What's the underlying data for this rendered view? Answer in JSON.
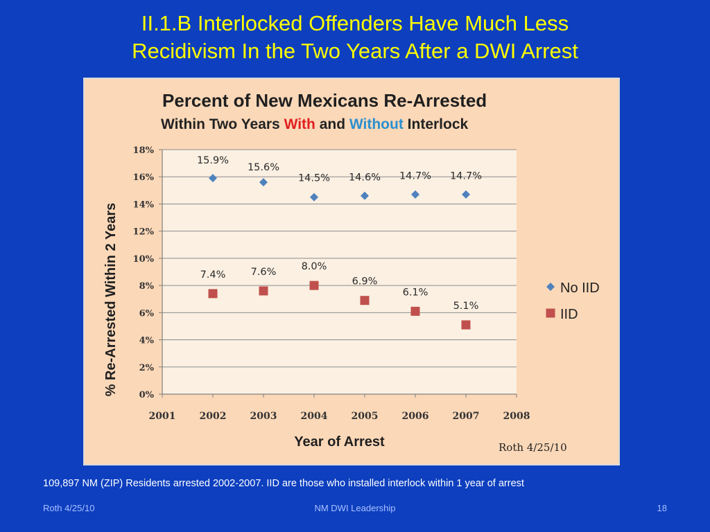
{
  "slide": {
    "title_line1": "II.1.B  Interlocked Offenders Have Much Less",
    "title_line2": "Recidivism In the Two Years After a DWI Arrest",
    "footnote": "109,897 NM (ZIP) Residents arrested 2002-2007.  IID are those who installed interlock within 1 year of arrest",
    "footer_left": "Roth 4/25/10",
    "footer_center": "NM DWI Leadership",
    "footer_right": "18"
  },
  "chart_data": {
    "type": "scatter",
    "title_line1": "Percent  of New Mexicans Re-Arrested",
    "title_line2_parts": [
      {
        "text": "Within Two Years ",
        "color": "#222222"
      },
      {
        "text": "With",
        "color": "#e02020"
      },
      {
        "text": " and ",
        "color": "#222222"
      },
      {
        "text": "Without",
        "color": "#2a8fd0"
      },
      {
        "text": " Interlock",
        "color": "#222222"
      }
    ],
    "xlabel": "Year of Arrest",
    "ylabel": "% Re-Arrested Within 2 Years",
    "xlim": [
      2001,
      2008
    ],
    "ylim": [
      0,
      18
    ],
    "x_ticks": [
      "2001",
      "2002",
      "2003",
      "2004",
      "2005",
      "2006",
      "2007",
      "2008"
    ],
    "y_ticks": [
      "0%",
      "2%",
      "4%",
      "6%",
      "8%",
      "10%",
      "12%",
      "14%",
      "16%",
      "18%"
    ],
    "grid": "horizontal",
    "legend_position": "right",
    "annotation": "Roth  4/25/10",
    "series": [
      {
        "name": "No IID",
        "marker": "diamond",
        "color": "#4f81bd",
        "x": [
          2002,
          2003,
          2004,
          2005,
          2006,
          2007
        ],
        "values": [
          15.9,
          15.6,
          14.5,
          14.6,
          14.7,
          14.7
        ],
        "labels": [
          "15.9%",
          "15.6%",
          "14.5%",
          "14.6%",
          "14.7%",
          "14.7%"
        ]
      },
      {
        "name": "IID",
        "marker": "square",
        "color": "#c0504d",
        "x": [
          2002,
          2003,
          2004,
          2005,
          2006,
          2007
        ],
        "values": [
          7.4,
          7.6,
          8.0,
          6.9,
          6.1,
          5.1
        ],
        "labels": [
          "7.4%",
          "7.6%",
          "8.0%",
          "6.9%",
          "6.1%",
          "5.1%"
        ]
      }
    ]
  }
}
